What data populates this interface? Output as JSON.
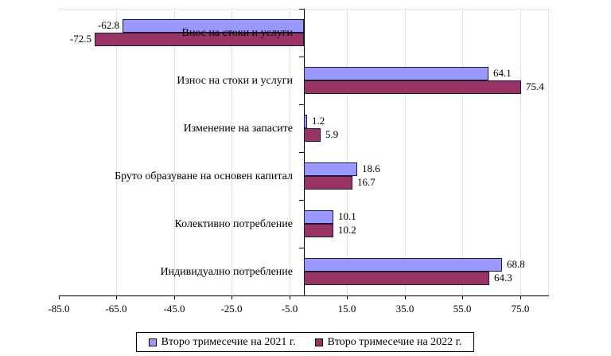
{
  "chart_data": {
    "type": "bar",
    "orientation": "horizontal",
    "title": "",
    "xlabel": "",
    "ylabel": "",
    "xlim": [
      -85,
      85
    ],
    "x_ticks": [
      "-85.0",
      "-65.0",
      "-45.0",
      "-25.0",
      "-5.0",
      "15.0",
      "35.0",
      "55.0",
      "75.0"
    ],
    "grid": true,
    "legend_position": "bottom",
    "categories": [
      "Внос на стоки и услуги",
      "Износ на стоки и услуги",
      "Изменение на запасите",
      "Бруто образуване на основен капитал",
      "Колективно потребление",
      "Индивидуално потребление"
    ],
    "series": [
      {
        "name": "Второ тримесечие на 2021 г.",
        "color": "#9999ff",
        "values": [
          -62.8,
          64.1,
          1.2,
          18.6,
          10.1,
          68.8
        ],
        "labels": [
          "-62.8",
          "64.1",
          "1.2",
          "18.6",
          "10.1",
          "68.8"
        ]
      },
      {
        "name": "Второ тримесечие на 2022 г.",
        "color": "#993366",
        "values": [
          -72.5,
          75.4,
          5.9,
          16.7,
          10.2,
          64.3
        ],
        "labels": [
          "-72.5",
          "75.4",
          "5.9",
          "16.7",
          "10.2",
          "64.3"
        ]
      }
    ]
  }
}
